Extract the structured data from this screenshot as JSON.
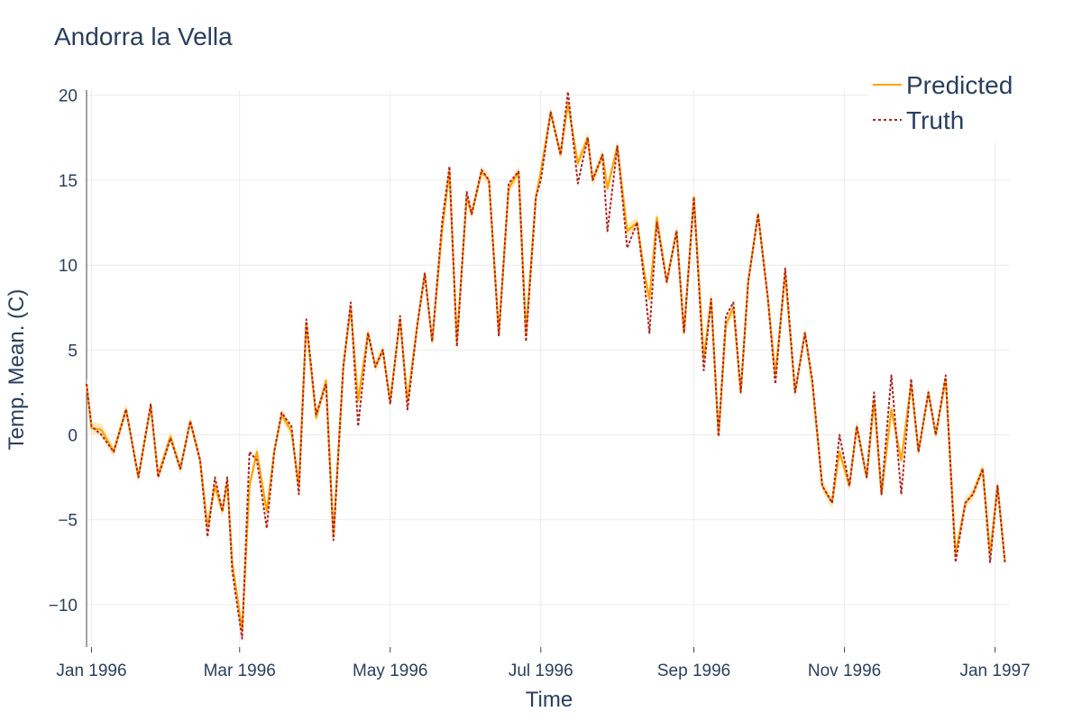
{
  "chart_data": {
    "type": "line",
    "title": "Andorra la Vella",
    "xlabel": "Time",
    "ylabel": "Temp. Mean. (C)",
    "ylim": [
      -12.5,
      20.3
    ],
    "xlim": [
      "1995-12-30",
      "1997-01-07"
    ],
    "yticks": [
      -10,
      -5,
      0,
      5,
      10,
      15,
      20
    ],
    "ytick_labels": [
      "−10",
      "−5",
      "0",
      "5",
      "10",
      "15",
      "20"
    ],
    "xticks": [
      {
        "date": "1996-01-01",
        "label": "Jan 1996"
      },
      {
        "date": "1996-03-01",
        "label": "Mar 1996"
      },
      {
        "date": "1996-05-01",
        "label": "May 1996"
      },
      {
        "date": "1996-07-01",
        "label": "Jul 1996"
      },
      {
        "date": "1996-09-01",
        "label": "Sep 1996"
      },
      {
        "date": "1996-11-01",
        "label": "Nov 1996"
      },
      {
        "date": "1997-01-01",
        "label": "Jan 1997"
      }
    ],
    "grid": true,
    "legend_position": "top-right",
    "legend": [
      "Predicted",
      "Truth"
    ],
    "colors": {
      "predicted": "#FFA500",
      "band": "#FFE3B0",
      "truth": "#B22222",
      "text": "#2a3f5f"
    },
    "x": [
      "1995-12-30",
      "1996-01-01",
      "1996-01-05",
      "1996-01-10",
      "1996-01-15",
      "1996-01-20",
      "1996-01-25",
      "1996-01-28",
      "1996-02-02",
      "1996-02-06",
      "1996-02-10",
      "1996-02-14",
      "1996-02-17",
      "1996-02-20",
      "1996-02-23",
      "1996-02-25",
      "1996-02-27",
      "1996-03-02",
      "1996-03-05",
      "1996-03-08",
      "1996-03-12",
      "1996-03-15",
      "1996-03-18",
      "1996-03-22",
      "1996-03-25",
      "1996-03-28",
      "1996-04-01",
      "1996-04-05",
      "1996-04-08",
      "1996-04-12",
      "1996-04-15",
      "1996-04-18",
      "1996-04-22",
      "1996-04-25",
      "1996-04-28",
      "1996-05-01",
      "1996-05-05",
      "1996-05-08",
      "1996-05-12",
      "1996-05-15",
      "1996-05-18",
      "1996-05-22",
      "1996-05-25",
      "1996-05-28",
      "1996-06-01",
      "1996-06-03",
      "1996-06-07",
      "1996-06-10",
      "1996-06-14",
      "1996-06-18",
      "1996-06-22",
      "1996-06-25",
      "1996-06-29",
      "1996-07-01",
      "1996-07-05",
      "1996-07-09",
      "1996-07-12",
      "1996-07-16",
      "1996-07-20",
      "1996-07-22",
      "1996-07-26",
      "1996-07-28",
      "1996-08-01",
      "1996-08-05",
      "1996-08-09",
      "1996-08-12",
      "1996-08-14",
      "1996-08-17",
      "1996-08-21",
      "1996-08-25",
      "1996-08-28",
      "1996-09-01",
      "1996-09-05",
      "1996-09-08",
      "1996-09-11",
      "1996-09-14",
      "1996-09-17",
      "1996-09-20",
      "1996-09-23",
      "1996-09-27",
      "1996-10-01",
      "1996-10-04",
      "1996-10-08",
      "1996-10-12",
      "1996-10-16",
      "1996-10-19",
      "1996-10-23",
      "1996-10-27",
      "1996-10-30",
      "1996-11-03",
      "1996-11-06",
      "1996-11-10",
      "1996-11-13",
      "1996-11-16",
      "1996-11-20",
      "1996-11-24",
      "1996-11-28",
      "1996-12-01",
      "1996-12-05",
      "1996-12-08",
      "1996-12-12",
      "1996-12-16",
      "1996-12-20",
      "1996-12-23",
      "1996-12-27",
      "1996-12-30",
      "1997-01-02",
      "1997-01-05"
    ],
    "series": [
      {
        "name": "Predicted",
        "values": [
          3.0,
          0.4,
          0.3,
          -1.0,
          1.5,
          -2.5,
          1.7,
          -2.4,
          -0.1,
          -2.0,
          0.8,
          -1.5,
          -5.4,
          -3.0,
          -4.5,
          -2.8,
          -7.5,
          -11.5,
          -3.0,
          -1.0,
          -4.5,
          -1.0,
          1.2,
          0.2,
          -3.0,
          6.6,
          1.0,
          3.2,
          -6.0,
          4.0,
          7.5,
          2.0,
          6.0,
          4.0,
          5.0,
          2.0,
          6.8,
          2.0,
          6.5,
          9.5,
          5.5,
          12.0,
          15.5,
          5.5,
          14.0,
          13.0,
          15.5,
          15.0,
          6.0,
          14.5,
          15.5,
          6.0,
          14.0,
          15.5,
          19.0,
          16.5,
          19.5,
          16.0,
          17.5,
          15.0,
          16.5,
          14.5,
          17.0,
          12.0,
          12.5,
          9.5,
          8.0,
          12.8,
          9.0,
          12.0,
          6.0,
          14.0,
          4.5,
          8.0,
          0.0,
          6.5,
          7.5,
          2.5,
          9.0,
          13.0,
          8.0,
          3.5,
          9.5,
          2.5,
          6.0,
          3.0,
          -3.0,
          -4.0,
          -1.0,
          -3.0,
          0.5,
          -2.5,
          2.0,
          -3.5,
          1.5,
          -1.5,
          3.0,
          -1.0,
          2.5,
          0.0,
          3.3,
          -7.0,
          -4.0,
          -3.5,
          -2.0,
          -7.0,
          -3.0,
          -7.5
        ]
      },
      {
        "name": "Truth",
        "values": [
          3.0,
          0.5,
          0.0,
          -1.0,
          1.5,
          -2.5,
          1.8,
          -2.5,
          -0.2,
          -2.0,
          0.8,
          -1.5,
          -6.0,
          -2.5,
          -4.5,
          -2.5,
          -8.0,
          -12.0,
          -1.0,
          -1.5,
          -5.5,
          -1.0,
          1.3,
          0.5,
          -3.5,
          6.8,
          1.2,
          3.0,
          -6.2,
          4.0,
          7.8,
          0.5,
          6.0,
          4.0,
          5.0,
          1.8,
          7.0,
          1.5,
          6.5,
          9.5,
          5.5,
          12.5,
          15.8,
          5.2,
          14.3,
          13.0,
          15.6,
          15.0,
          5.8,
          14.8,
          15.5,
          5.5,
          14.0,
          15.0,
          19.0,
          16.5,
          20.2,
          14.8,
          17.5,
          15.0,
          16.5,
          12.0,
          17.0,
          11.0,
          12.5,
          9.0,
          6.0,
          12.5,
          9.0,
          12.0,
          6.0,
          14.0,
          3.8,
          8.0,
          -0.1,
          7.0,
          7.8,
          2.5,
          9.0,
          13.0,
          8.0,
          3.0,
          9.8,
          2.5,
          6.0,
          3.2,
          -3.0,
          -4.0,
          0.0,
          -3.0,
          0.5,
          -2.5,
          2.5,
          -3.5,
          3.5,
          -3.5,
          3.3,
          -1.0,
          2.5,
          0.0,
          3.5,
          -7.5,
          -4.0,
          -3.5,
          -2.0,
          -7.5,
          -3.0,
          -7.5
        ]
      }
    ]
  }
}
